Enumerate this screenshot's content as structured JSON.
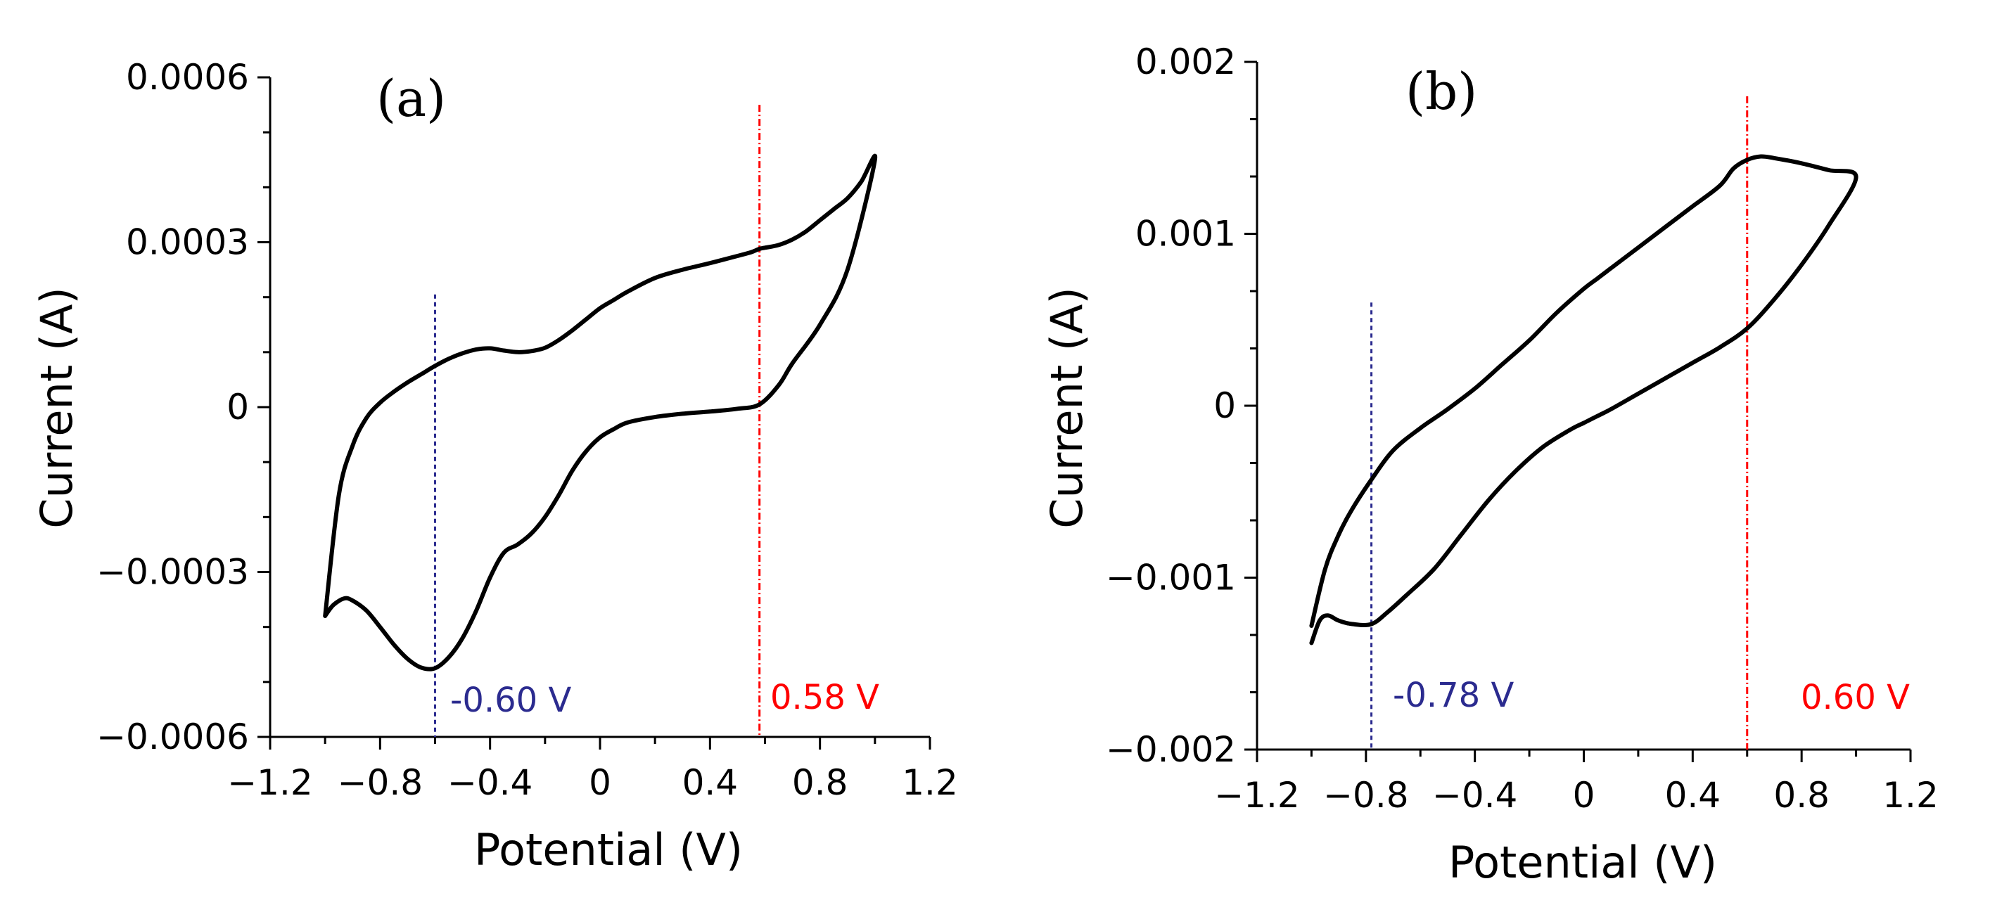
{
  "colors": {
    "curve": "#000000",
    "reduction_line": "#2b2b8f",
    "oxidation_line": "#ff0000"
  },
  "chart_data": [
    {
      "type": "line",
      "panel": "(a)",
      "xlabel": "Potential (V)",
      "ylabel": "Current (A)",
      "xlim": [
        -1.2,
        1.2
      ],
      "ylim": [
        -0.0006,
        0.0006
      ],
      "xticks": [
        {
          "value": -1.2,
          "label": "−1.2"
        },
        {
          "value": -0.8,
          "label": "−0.8"
        },
        {
          "value": -0.4,
          "label": "−0.4"
        },
        {
          "value": 0,
          "label": "0"
        },
        {
          "value": 0.4,
          "label": "0.4"
        },
        {
          "value": 0.8,
          "label": "0.8"
        },
        {
          "value": 1.2,
          "label": "1.2"
        }
      ],
      "yticks": [
        {
          "value": -0.0006,
          "label": "−0.0006"
        },
        {
          "value": -0.0003,
          "label": "−0.0003"
        },
        {
          "value": 0,
          "label": "0"
        },
        {
          "value": 0.0003,
          "label": "0.0003"
        },
        {
          "value": 0.0006,
          "label": "0.0006"
        }
      ],
      "series": [
        {
          "x": [
            -1.0,
            -0.97,
            -0.93,
            -0.9,
            -0.85,
            -0.8,
            -0.75,
            -0.7,
            -0.65,
            -0.6,
            -0.55,
            -0.5,
            -0.45,
            -0.4,
            -0.35,
            -0.3,
            -0.25,
            -0.2,
            -0.15,
            -0.1,
            -0.05,
            0.0,
            0.05,
            0.1,
            0.2,
            0.3,
            0.4,
            0.5,
            0.58,
            0.65,
            0.7,
            0.8,
            0.9,
            1.0,
            0.95,
            0.9,
            0.85,
            0.8,
            0.75,
            0.7,
            0.65,
            0.6,
            0.58,
            0.55,
            0.5,
            0.4,
            0.3,
            0.2,
            0.1,
            0.05,
            0.0,
            -0.05,
            -0.1,
            -0.15,
            -0.2,
            -0.25,
            -0.3,
            -0.35,
            -0.4,
            -0.45,
            -0.5,
            -0.55,
            -0.6,
            -0.65,
            -0.7,
            -0.75,
            -0.8,
            -0.85,
            -0.9,
            -0.95,
            -1.0
          ],
          "y": [
            -0.00038,
            -0.00036,
            -0.000348,
            -0.000352,
            -0.00037,
            -0.0004,
            -0.000432,
            -0.000458,
            -0.000474,
            -0.000475,
            -0.000455,
            -0.00042,
            -0.00037,
            -0.00031,
            -0.000265,
            -0.00025,
            -0.00023,
            -0.0002,
            -0.00016,
            -0.000115,
            -8e-05,
            -5.5e-05,
            -4e-05,
            -2.8e-05,
            -1.8e-05,
            -1.2e-05,
            -8e-06,
            -3e-06,
            5e-06,
            4e-05,
            8e-05,
            0.00015,
            0.00025,
            0.00045,
            0.00041,
            0.00038,
            0.00036,
            0.00034,
            0.00032,
            0.000305,
            0.000295,
            0.00029,
            0.000288,
            0.000282,
            0.000275,
            0.000262,
            0.00025,
            0.000235,
            0.00021,
            0.000195,
            0.00018,
            0.00016,
            0.00014,
            0.000122,
            0.000108,
            0.000102,
            0.0001,
            0.000103,
            0.000107,
            0.000105,
            9.8e-05,
            8.8e-05,
            7.5e-05,
            6e-05,
            4.5e-05,
            2.8e-05,
            8e-06,
            -2e-05,
            -7e-05,
            -0.00016,
            -0.00038
          ]
        }
      ],
      "vlines": [
        {
          "x": -0.6,
          "label": "-0.60 V",
          "color": "#2b2b8f",
          "y_top": 0.000205,
          "y_bottom": -0.0006
        },
        {
          "x": 0.58,
          "label": "0.58 V",
          "color": "#ff0000",
          "y_top": 0.00055,
          "y_bottom": -0.0006
        }
      ]
    },
    {
      "type": "line",
      "panel": "(b)",
      "xlabel": "Potential (V)",
      "ylabel": "Current (A)",
      "xlim": [
        -1.2,
        1.2
      ],
      "ylim": [
        -0.002,
        0.002
      ],
      "xticks": [
        {
          "value": -1.2,
          "label": "−1.2"
        },
        {
          "value": -0.8,
          "label": "−0.8"
        },
        {
          "value": -0.4,
          "label": "−0.4"
        },
        {
          "value": 0,
          "label": "0"
        },
        {
          "value": 0.4,
          "label": "0.4"
        },
        {
          "value": 0.8,
          "label": "0.8"
        },
        {
          "value": 1.2,
          "label": "1.2"
        }
      ],
      "yticks": [
        {
          "value": -0.002,
          "label": "−0.002"
        },
        {
          "value": -0.001,
          "label": "−0.001"
        },
        {
          "value": 0,
          "label": "0"
        },
        {
          "value": 0.001,
          "label": "0.001"
        },
        {
          "value": 0.002,
          "label": "0.002"
        }
      ],
      "series": [
        {
          "x": [
            -1.0,
            -0.97,
            -0.94,
            -0.9,
            -0.85,
            -0.78,
            -0.72,
            -0.65,
            -0.55,
            -0.45,
            -0.35,
            -0.25,
            -0.15,
            -0.05,
            0.0,
            0.05,
            0.1,
            0.2,
            0.3,
            0.4,
            0.5,
            0.6,
            0.7,
            0.8,
            0.9,
            1.0,
            0.9,
            0.8,
            0.7,
            0.65,
            0.6,
            0.55,
            0.5,
            0.4,
            0.3,
            0.2,
            0.1,
            0.05,
            0.0,
            -0.1,
            -0.2,
            -0.3,
            -0.4,
            -0.5,
            -0.6,
            -0.7,
            -0.78,
            -0.85,
            -0.9,
            -0.95,
            -1.0
          ],
          "y": [
            -0.00138,
            -0.00125,
            -0.00122,
            -0.00125,
            -0.00127,
            -0.00127,
            -0.0012,
            -0.0011,
            -0.00095,
            -0.00075,
            -0.00055,
            -0.00038,
            -0.00024,
            -0.00014,
            -0.0001,
            -6e-05,
            -2e-05,
            7e-05,
            0.00016,
            0.00025,
            0.00034,
            0.00045,
            0.00062,
            0.00082,
            0.00105,
            0.00133,
            0.00137,
            0.00141,
            0.00144,
            0.00145,
            0.00143,
            0.00138,
            0.00128,
            0.00116,
            0.00104,
            0.00092,
            0.0008,
            0.00074,
            0.00068,
            0.00054,
            0.00038,
            0.00024,
            0.0001,
            -2e-05,
            -0.00013,
            -0.00026,
            -0.00043,
            -0.0006,
            -0.00075,
            -0.00095,
            -0.00128
          ]
        }
      ],
      "vlines": [
        {
          "x": -0.78,
          "label": "-0.78 V",
          "color": "#2b2b8f",
          "y_top": 0.0006,
          "y_bottom": -0.002
        },
        {
          "x": 0.6,
          "label": "0.60 V",
          "color": "#ff0000",
          "y_top": 0.0018,
          "y_bottom": -0.002
        }
      ]
    }
  ]
}
